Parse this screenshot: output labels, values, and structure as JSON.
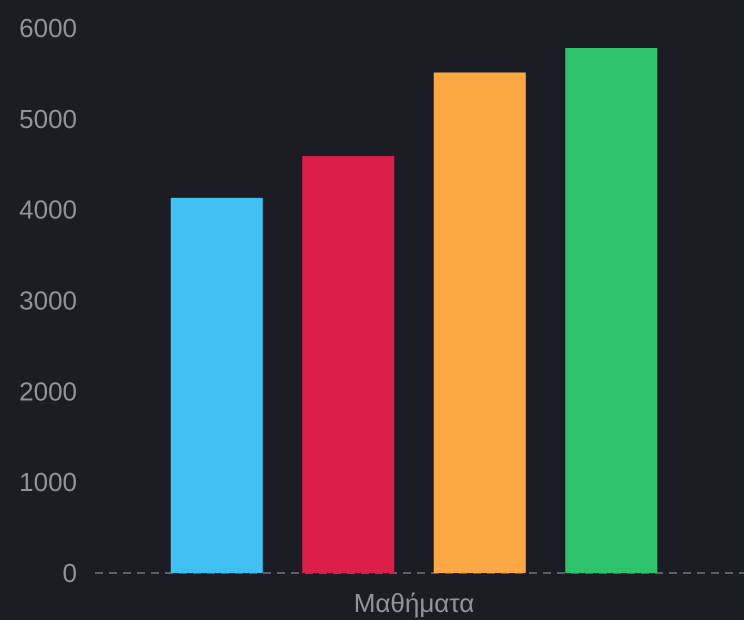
{
  "chart_data": {
    "type": "bar",
    "categories": [
      "Μαθήματα"
    ],
    "series": [
      {
        "values": [
          4130
        ],
        "color": "#41c1f3"
      },
      {
        "values": [
          4590
        ],
        "color": "#dc1e4a"
      },
      {
        "values": [
          5510
        ],
        "color": "#fca845"
      },
      {
        "values": [
          5780
        ],
        "color": "#2dc36c"
      }
    ],
    "y_ticks": [
      "0",
      "1000",
      "2000",
      "3000",
      "4000",
      "5000",
      "6000"
    ],
    "ylim": [
      0,
      6000
    ],
    "grid": false,
    "baseline": "dashed"
  }
}
